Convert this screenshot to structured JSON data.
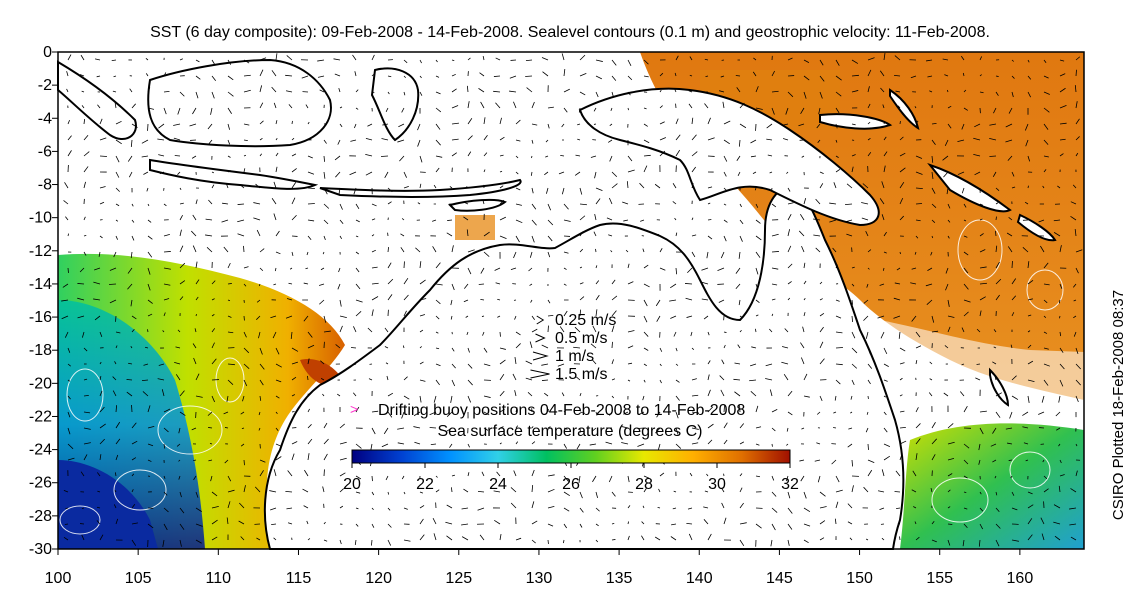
{
  "title": "SST (6 day composite): 09-Feb-2008 - 14-Feb-2008. Sealevel contours (0.1 m) and geostrophic velocity: 11-Feb-2008.",
  "side_note": "CSIRO Plotted 18-Feb-2008 08:37",
  "map": {
    "lon_range": [
      100,
      164
    ],
    "lat_range": [
      -30,
      0
    ],
    "x_ticks": [
      "100",
      "105",
      "110",
      "115",
      "120",
      "125",
      "130",
      "135",
      "140",
      "145",
      "150",
      "155",
      "160"
    ],
    "y_ticks": [
      "0",
      "-2",
      "-4",
      "-6",
      "-8",
      "-10",
      "-12",
      "-14",
      "-16",
      "-18",
      "-20",
      "-22",
      "-24",
      "-26",
      "-28",
      "-30"
    ]
  },
  "velocity_legend": [
    {
      "label": "0.25 m/s",
      "speed": 0.25
    },
    {
      "label": "0.5 m/s",
      "speed": 0.5
    },
    {
      "label": "1 m/s",
      "speed": 1
    },
    {
      "label": "1.5 m/s",
      "speed": 1.5
    }
  ],
  "buoy_legend": "Drifting buoy positions 04-Feb-2008 to 14-Feb-2008",
  "buoy_color": "#ff33cc",
  "colorbar": {
    "title": "Sea surface temperature (degrees C)",
    "ticks": [
      "20",
      "22",
      "24",
      "26",
      "28",
      "30",
      "32"
    ],
    "range": [
      20,
      32
    ],
    "colors": [
      "#000080",
      "#0040d0",
      "#0090ff",
      "#30d0e8",
      "#00c060",
      "#60d020",
      "#e8e800",
      "#ffb000",
      "#e07000",
      "#a01000"
    ]
  }
}
